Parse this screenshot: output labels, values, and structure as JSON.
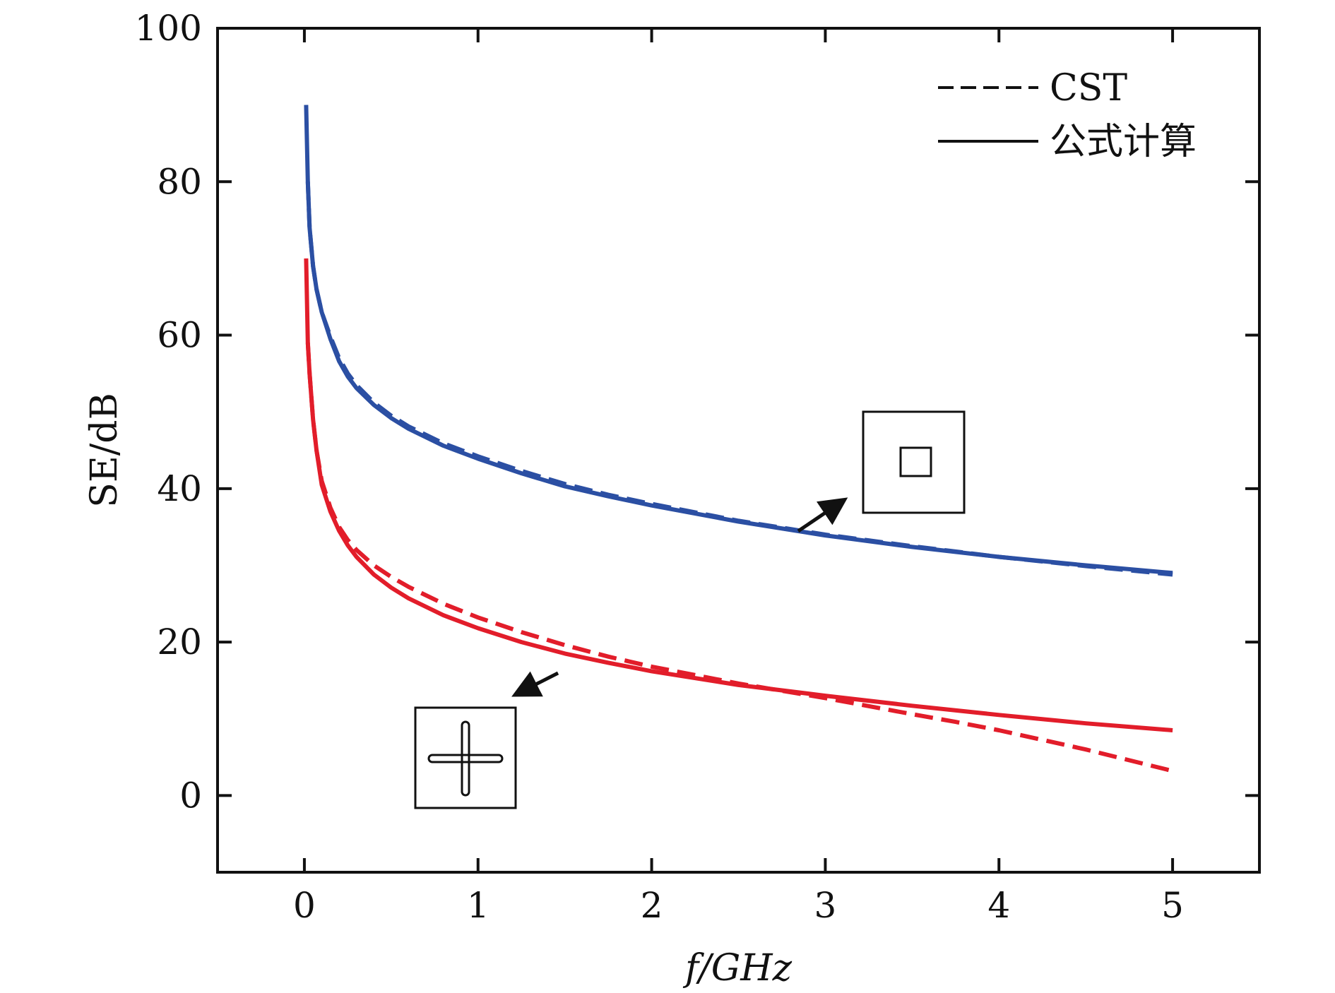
{
  "chart_data": {
    "type": "line",
    "xlabel": "f/GHz",
    "ylabel": "SE/dB",
    "xlim": [
      -0.5,
      5.5
    ],
    "ylim": [
      -10,
      100
    ],
    "xticks": [
      "0",
      "1",
      "2",
      "3",
      "4",
      "5"
    ],
    "yticks": [
      "0",
      "20",
      "40",
      "60",
      "80",
      "100"
    ],
    "grid": false,
    "legend_position": "top-right",
    "legend": [
      {
        "label": "CST",
        "style": "dashed"
      },
      {
        "label": "公式计算",
        "style": "solid"
      }
    ],
    "colors": {
      "blue": "#2b4fa3",
      "red": "#e21d2a",
      "axis": "#111111"
    },
    "series": [
      {
        "color": "#2b4fa3",
        "style": "solid",
        "aperture": "square",
        "x": [
          0.01,
          0.02,
          0.03,
          0.05,
          0.07,
          0.1,
          0.15,
          0.2,
          0.25,
          0.3,
          0.4,
          0.5,
          0.6,
          0.8,
          1.0,
          1.25,
          1.5,
          1.75,
          2.0,
          2.5,
          3.0,
          3.5,
          4.0,
          4.5,
          5.0
        ],
        "y": [
          90,
          80,
          74,
          69,
          66,
          63,
          59.5,
          56.6,
          54.6,
          53.1,
          50.9,
          49.2,
          47.8,
          45.6,
          43.9,
          42.0,
          40.3,
          39.0,
          37.8,
          35.7,
          33.9,
          32.4,
          31.1,
          30.0,
          29.0
        ]
      },
      {
        "color": "#2b4fa3",
        "style": "dashed",
        "aperture": "square",
        "x": [
          0.02,
          0.03,
          0.05,
          0.07,
          0.1,
          0.15,
          0.2,
          0.25,
          0.3,
          0.4,
          0.5,
          0.6,
          0.8,
          1.0,
          1.25,
          1.5,
          1.75,
          2.0,
          2.5,
          3.0,
          3.5,
          4.0,
          4.5,
          5.0
        ],
        "y": [
          80,
          74,
          69,
          66,
          63,
          59.8,
          57,
          55,
          53.5,
          51.2,
          49.5,
          48.1,
          45.9,
          44.2,
          42.3,
          40.6,
          39.2,
          38.0,
          35.8,
          34.0,
          32.5,
          31.1,
          29.9,
          28.8
        ]
      },
      {
        "color": "#e21d2a",
        "style": "solid",
        "aperture": "cross",
        "x": [
          0.01,
          0.02,
          0.03,
          0.05,
          0.07,
          0.1,
          0.15,
          0.2,
          0.25,
          0.3,
          0.4,
          0.5,
          0.6,
          0.8,
          1.0,
          1.25,
          1.5,
          1.75,
          2.0,
          2.5,
          3.0,
          3.5,
          4.0,
          4.5,
          5.0
        ],
        "y": [
          70,
          59,
          55,
          49,
          45,
          40.5,
          37,
          34.5,
          32.6,
          31.1,
          28.8,
          27.1,
          25.7,
          23.5,
          21.8,
          20.0,
          18.5,
          17.3,
          16.2,
          14.4,
          13.0,
          11.7,
          10.5,
          9.4,
          8.5
        ]
      },
      {
        "color": "#e21d2a",
        "style": "dashed",
        "aperture": "cross",
        "x": [
          0.02,
          0.03,
          0.05,
          0.07,
          0.1,
          0.15,
          0.2,
          0.25,
          0.3,
          0.4,
          0.5,
          0.6,
          0.8,
          1.0,
          1.25,
          1.5,
          1.75,
          2.0,
          2.5,
          3.0,
          3.5,
          3.75,
          4.0,
          4.5,
          5.0
        ],
        "y": [
          59,
          55,
          49,
          45,
          41,
          37.5,
          35,
          33.3,
          32,
          30,
          28.5,
          27.2,
          25.0,
          23.2,
          21.3,
          19.6,
          18.1,
          16.8,
          14.6,
          12.7,
          10.6,
          9.6,
          8.5,
          6.0,
          3.2
        ]
      }
    ]
  }
}
